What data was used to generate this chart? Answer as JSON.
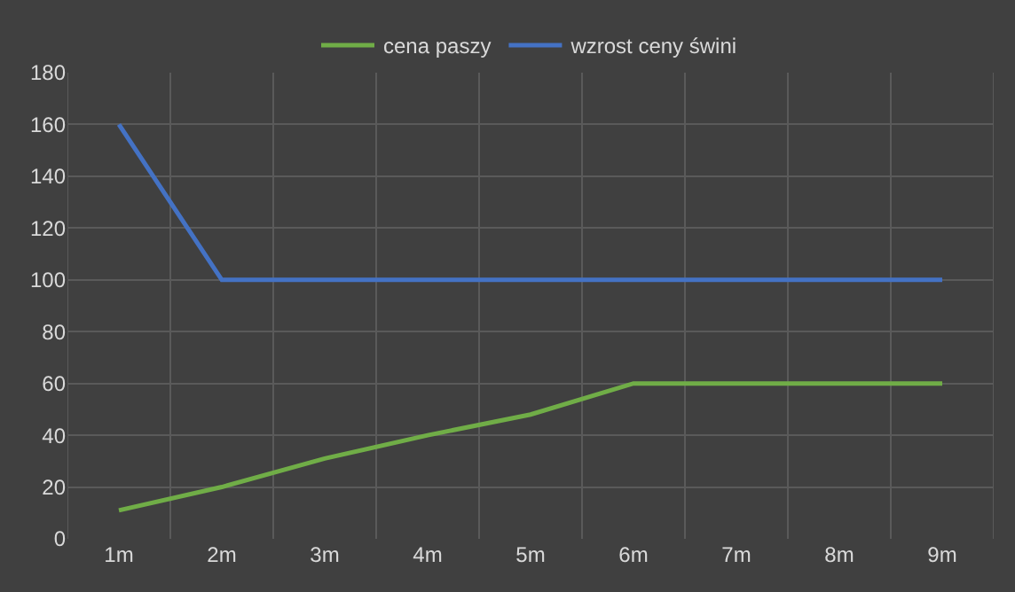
{
  "chart_data": {
    "type": "line",
    "categories": [
      "1m",
      "2m",
      "3m",
      "4m",
      "5m",
      "6m",
      "7m",
      "8m",
      "9m"
    ],
    "series": [
      {
        "name": "cena paszy",
        "color": "#70ad47",
        "values": [
          11,
          20,
          31,
          40,
          48,
          60,
          60,
          60,
          60
        ]
      },
      {
        "name": "wzrost ceny świni",
        "color": "#4472c4",
        "values": [
          160,
          100,
          100,
          100,
          100,
          100,
          100,
          100,
          100
        ]
      }
    ],
    "ylim": [
      0,
      180
    ],
    "yticks": [
      0,
      20,
      40,
      60,
      80,
      100,
      120,
      140,
      160,
      180
    ],
    "grid": true,
    "legend": "top",
    "marker": "none",
    "line_style": "solid"
  }
}
